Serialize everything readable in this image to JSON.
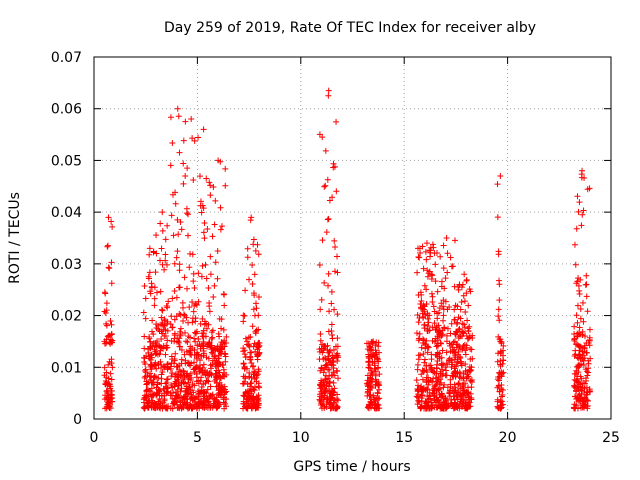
{
  "chart_data": {
    "type": "scatter",
    "title": "Day 259 of 2019, Rate Of TEC Index for receiver alby",
    "xlabel": "GPS time / hours",
    "ylabel": "ROTI / TECUs",
    "xlim": [
      0,
      25
    ],
    "ylim": [
      0,
      0.07
    ],
    "x_ticks": [
      0,
      5,
      10,
      15,
      20,
      25
    ],
    "x_tick_labels": [
      "0",
      "5",
      "10",
      "15",
      "20",
      "25"
    ],
    "y_ticks": [
      0,
      0.01,
      0.02,
      0.03,
      0.04,
      0.05,
      0.06,
      0.07
    ],
    "y_tick_labels": [
      "0",
      "0.01",
      "0.02",
      "0.03",
      "0.04",
      "0.05",
      "0.06",
      "0.07"
    ],
    "grid": true,
    "marker": "plus",
    "marker_color": "#ff0000",
    "clusters": [
      {
        "x_range": [
          0.5,
          0.9
        ],
        "y_base": [
          0.002,
          0.016
        ],
        "y_spike": 0.039
      },
      {
        "x_range": [
          2.4,
          3.0
        ],
        "y_base": [
          0.002,
          0.014
        ],
        "y_spike": 0.033
      },
      {
        "x_range": [
          3.0,
          3.6
        ],
        "y_base": [
          0.002,
          0.018
        ],
        "y_spike": 0.04
      },
      {
        "x_range": [
          3.7,
          4.4
        ],
        "y_base": [
          0.002,
          0.018
        ],
        "y_spike": 0.06
      },
      {
        "x_range": [
          4.4,
          5.0
        ],
        "y_base": [
          0.002,
          0.016
        ],
        "y_spike": 0.058
      },
      {
        "x_range": [
          5.0,
          5.6
        ],
        "y_base": [
          0.002,
          0.016
        ],
        "y_spike": 0.056
      },
      {
        "x_range": [
          5.6,
          6.4
        ],
        "y_base": [
          0.002,
          0.014
        ],
        "y_spike": 0.05
      },
      {
        "x_range": [
          7.2,
          8.0
        ],
        "y_base": [
          0.002,
          0.014
        ],
        "y_spike": 0.039
      },
      {
        "x_range": [
          10.9,
          11.8
        ],
        "y_base": [
          0.002,
          0.014
        ],
        "y_spike": 0.0635
      },
      {
        "x_range": [
          13.2,
          13.8
        ],
        "y_base": [
          0.002,
          0.012
        ],
        "y_spike": 0.015
      },
      {
        "x_range": [
          15.6,
          16.6
        ],
        "y_base": [
          0.002,
          0.02
        ],
        "y_spike": 0.034
      },
      {
        "x_range": [
          16.6,
          17.5
        ],
        "y_base": [
          0.002,
          0.016
        ],
        "y_spike": 0.035
      },
      {
        "x_range": [
          17.5,
          18.3
        ],
        "y_base": [
          0.002,
          0.016
        ],
        "y_spike": 0.028
      },
      {
        "x_range": [
          19.5,
          19.8
        ],
        "y_base": [
          0.002,
          0.014
        ],
        "y_spike": 0.047
      },
      {
        "x_range": [
          23.2,
          24.0
        ],
        "y_base": [
          0.002,
          0.016
        ],
        "y_spike": 0.048
      }
    ]
  }
}
